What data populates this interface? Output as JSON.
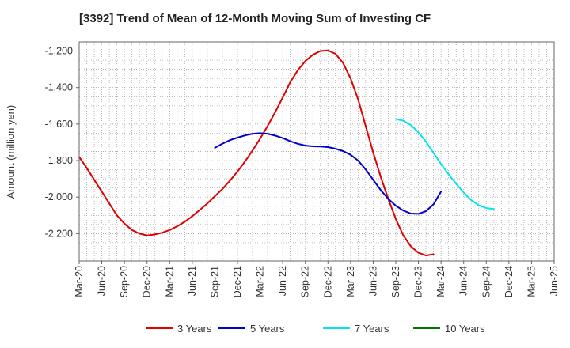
{
  "chart_data": {
    "type": "line",
    "title": "[3392]  Trend of Mean of 12-Month Moving Sum of Investing CF",
    "xlabel": "",
    "ylabel": "Amount (million yen)",
    "ylim": [
      -2350,
      -1150
    ],
    "yticks": [
      -1200,
      -1400,
      -1600,
      -1800,
      -2000,
      -2200
    ],
    "ytick_labels": [
      "-1,200",
      "-1,400",
      "-1,600",
      "-1,800",
      "-2,000",
      "-2,200"
    ],
    "x_start": "2020-03",
    "x_end": "2025-06",
    "xtick_labels": [
      "Mar-20",
      "Jun-20",
      "Sep-20",
      "Dec-20",
      "Mar-21",
      "Jun-21",
      "Sep-21",
      "Dec-21",
      "Mar-22",
      "Jun-22",
      "Sep-22",
      "Dec-22",
      "Mar-23",
      "Jun-23",
      "Sep-23",
      "Dec-23",
      "Mar-24",
      "Jun-24",
      "Sep-24",
      "Dec-24",
      "Mar-25",
      "Jun-25"
    ],
    "grid": true,
    "legend_position": "bottom",
    "series": [
      {
        "name": "3 Years",
        "color": "#e00000",
        "start_month_index": 0,
        "values": [
          -1780,
          -1840,
          -1905,
          -1970,
          -2035,
          -2100,
          -2145,
          -2180,
          -2200,
          -2210,
          -2205,
          -2195,
          -2180,
          -2160,
          -2135,
          -2105,
          -2070,
          -2035,
          -1995,
          -1955,
          -1910,
          -1860,
          -1805,
          -1745,
          -1680,
          -1610,
          -1535,
          -1455,
          -1370,
          -1305,
          -1255,
          -1220,
          -1200,
          -1197,
          -1215,
          -1265,
          -1350,
          -1465,
          -1610,
          -1755,
          -1890,
          -2010,
          -2120,
          -2210,
          -2270,
          -2305,
          -2320,
          -2313
        ]
      },
      {
        "name": "5 Years",
        "color": "#0000cc",
        "start_month_index": 18,
        "values": [
          -1730,
          -1707,
          -1688,
          -1674,
          -1662,
          -1653,
          -1650,
          -1653,
          -1663,
          -1677,
          -1694,
          -1708,
          -1718,
          -1722,
          -1723,
          -1726,
          -1735,
          -1748,
          -1768,
          -1800,
          -1848,
          -1905,
          -1962,
          -2010,
          -2047,
          -2074,
          -2090,
          -2092,
          -2077,
          -2040,
          -1970
        ]
      },
      {
        "name": "7 Years",
        "color": "#00e5ee",
        "start_month_index": 42,
        "values": [
          -1572,
          -1582,
          -1605,
          -1645,
          -1697,
          -1758,
          -1818,
          -1875,
          -1927,
          -1975,
          -2016,
          -2045,
          -2060,
          -2065
        ]
      },
      {
        "name": "10 Years",
        "color": "#007700",
        "start_month_index": 0,
        "values": []
      }
    ]
  }
}
